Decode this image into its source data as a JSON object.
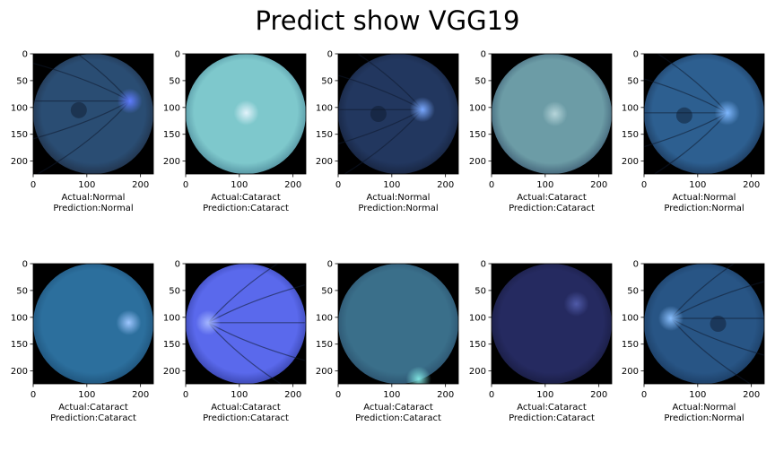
{
  "chart_data": {
    "type": "image_grid",
    "title": "Predict show VGG19",
    "rows": 2,
    "cols": 5,
    "axis": {
      "xlim": [
        0,
        224
      ],
      "ylim": [
        224,
        0
      ],
      "x_ticks": [
        0,
        100,
        200
      ],
      "y_ticks": [
        0,
        50,
        100,
        150,
        200
      ]
    },
    "panels": [
      {
        "actual": "Actual:Normal",
        "prediction": "Prediction:Normal",
        "image": {
          "bg": "#000000",
          "disc": "#2a4d73",
          "edge": "#202f45",
          "spot": "#5f7cff",
          "spot_pos": [
            180,
            88
          ],
          "vessels": true,
          "macula": [
            85,
            105
          ]
        }
      },
      {
        "actual": "Actual:Cataract",
        "prediction": "Prediction:Cataract",
        "image": {
          "bg": "#000000",
          "disc": "#7ec8cc",
          "edge": "#4d8a9a",
          "spot": "#e2f3fb",
          "spot_pos": [
            113,
            110
          ],
          "vessels": false,
          "macula": null
        }
      },
      {
        "actual": "Actual:Normal",
        "prediction": "Prediction:Normal",
        "image": {
          "bg": "#000000",
          "disc": "#22375f",
          "edge": "#16223c",
          "spot": "#79a8ff",
          "spot_pos": [
            157,
            104
          ],
          "vessels": true,
          "macula": [
            75,
            112
          ]
        }
      },
      {
        "actual": "Actual:Cataract",
        "prediction": "Prediction:Cataract",
        "image": {
          "bg": "#000000",
          "disc": "#6c9ca6",
          "edge": "#3c5b72",
          "spot": "#b6d5da",
          "spot_pos": [
            118,
            112
          ],
          "vessels": false,
          "macula": null
        }
      },
      {
        "actual": "Actual:Normal",
        "prediction": "Prediction:Normal",
        "image": {
          "bg": "#000000",
          "disc": "#2d5f90",
          "edge": "#1b3658",
          "spot": "#7fb8ff",
          "spot_pos": [
            155,
            110
          ],
          "vessels": true,
          "macula": [
            75,
            115
          ]
        }
      },
      {
        "actual": "Actual:Cataract",
        "prediction": "Prediction:Cataract",
        "image": {
          "bg": "#000000",
          "disc": "#2c6f9d",
          "edge": "#1d4f76",
          "spot": "#9ec6ff",
          "spot_pos": [
            178,
            110
          ],
          "vessels": false,
          "macula": null
        }
      },
      {
        "actual": "Actual:Cataract",
        "prediction": "Prediction:Cataract",
        "image": {
          "bg": "#000000",
          "disc": "#5a69ec",
          "edge": "#3540a6",
          "spot": "#a4b6ff",
          "spot_pos": [
            42,
            110
          ],
          "vessels": true,
          "macula": null
        }
      },
      {
        "actual": "Actual:Cataract",
        "prediction": "Prediction:Cataract",
        "image": {
          "bg": "#000000",
          "disc": "#3a6f8a",
          "edge": "#2a4f6b",
          "spot": "#7fe3e0",
          "spot_pos": [
            150,
            215
          ],
          "vessels": false,
          "macula": null
        }
      },
      {
        "actual": "Actual:Cataract",
        "prediction": "Prediction:Cataract",
        "image": {
          "bg": "#000000",
          "disc": "#252a60",
          "edge": "#181b3f",
          "spot": "#4f5aa8",
          "spot_pos": [
            158,
            75
          ],
          "vessels": false,
          "macula": null
        }
      },
      {
        "actual": "Actual:Normal",
        "prediction": "Prediction:Normal",
        "image": {
          "bg": "#000000",
          "disc": "#285585",
          "edge": "#1a3a60",
          "spot": "#8ac0ff",
          "spot_pos": [
            50,
            102
          ],
          "vessels": true,
          "macula": [
            138,
            112
          ]
        }
      }
    ]
  }
}
